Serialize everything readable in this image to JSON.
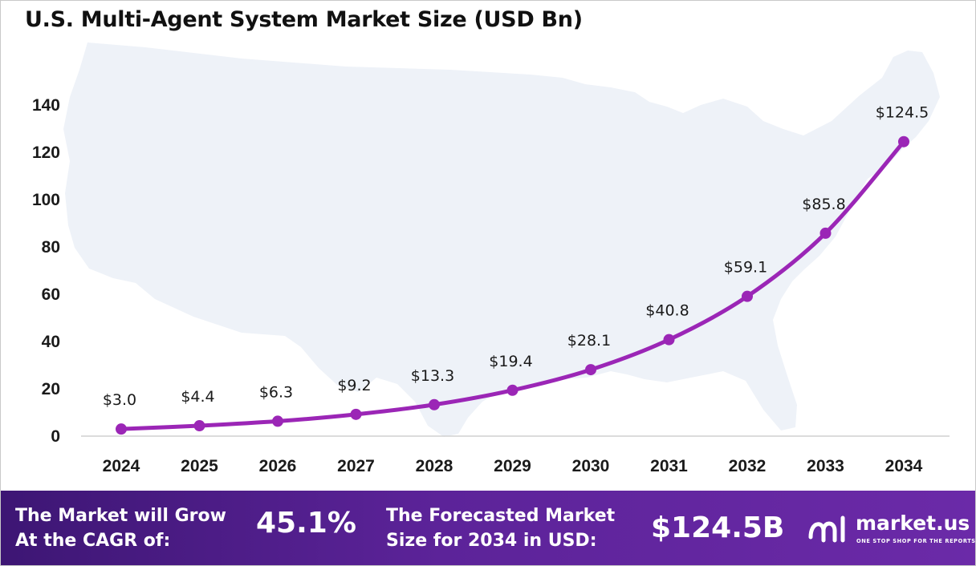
{
  "title": "U.S. Multi-Agent System Market Size (USD Bn)",
  "chart_data": {
    "type": "line",
    "title": "U.S. Multi-Agent System Market Size (USD Bn)",
    "x": [
      "2024",
      "2025",
      "2026",
      "2027",
      "2028",
      "2029",
      "2030",
      "2031",
      "2032",
      "2033",
      "2034"
    ],
    "series": [
      {
        "values": [
          3.0,
          4.4,
          6.3,
          9.2,
          13.3,
          19.4,
          28.1,
          40.8,
          59.1,
          85.8,
          124.5
        ],
        "labels": [
          "$3.0",
          "$4.4",
          "$6.3",
          "$9.2",
          "$13.3",
          "$19.4",
          "$28.1",
          "$40.8",
          "$59.1",
          "$85.8",
          "$124.5"
        ],
        "color": "#9b26b6"
      }
    ],
    "yticks": [
      "0",
      "20",
      "40",
      "60",
      "80",
      "100",
      "120",
      "140"
    ],
    "ylim": [
      0,
      140
    ],
    "xlabel": "",
    "ylabel": "",
    "grid": false,
    "legend": "none",
    "background": "United States map silhouette"
  },
  "footer": {
    "cagr_text_line1": "The Market will Grow",
    "cagr_text_line2": "At the CAGR of:",
    "cagr_value": "45.1%",
    "forecast_text_line1": "The Forecasted Market",
    "forecast_text_line2": "Size for 2034 in USD:",
    "forecast_value": "$124.5B"
  },
  "brand": {
    "name": "market.us",
    "tagline": "ONE STOP SHOP FOR THE REPORTS",
    "logo_icon": "market-us-logo-icon"
  },
  "colors": {
    "line": "#9b26b6",
    "map": "#eef2f8",
    "footer_start": "#3d1674",
    "footer_end": "#6b2aa8"
  }
}
